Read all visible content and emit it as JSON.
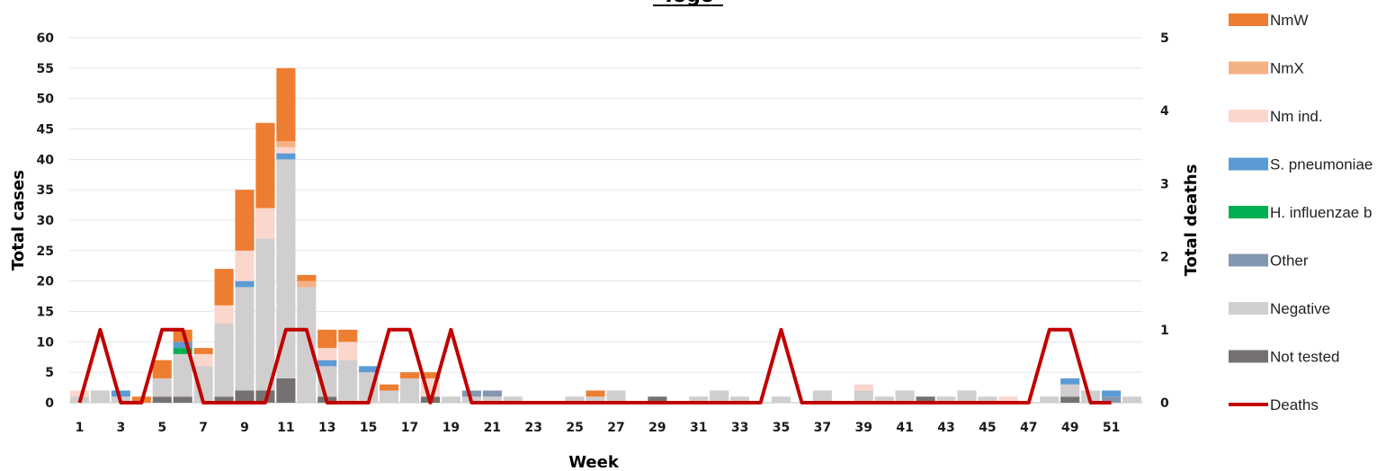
{
  "chart_data": {
    "type": "bar",
    "stacked": true,
    "title": "Togo",
    "xlabel": "Week",
    "ylabel": "Total cases",
    "y2label": "Total deaths",
    "ylim": [
      0,
      60
    ],
    "y2lim": [
      0,
      5
    ],
    "yticks": [
      0,
      5,
      10,
      15,
      20,
      25,
      30,
      35,
      40,
      45,
      50,
      55,
      60
    ],
    "y2ticks": [
      0,
      1,
      2,
      3,
      4,
      5
    ],
    "x_tick_labels": [
      1,
      3,
      5,
      7,
      9,
      11,
      13,
      15,
      17,
      19,
      21,
      23,
      25,
      27,
      29,
      31,
      33,
      35,
      37,
      39,
      41,
      43,
      45,
      47,
      49,
      51
    ],
    "x": [
      1,
      2,
      3,
      4,
      5,
      6,
      7,
      8,
      9,
      10,
      11,
      12,
      13,
      14,
      15,
      16,
      17,
      18,
      19,
      20,
      21,
      22,
      23,
      24,
      25,
      26,
      27,
      28,
      29,
      30,
      31,
      32,
      33,
      34,
      35,
      36,
      37,
      38,
      39,
      40,
      41,
      42,
      43,
      44,
      45,
      46,
      47,
      48,
      49,
      50,
      51,
      52
    ],
    "grid": true,
    "legend_position": "right",
    "series": [
      {
        "name": "Not tested",
        "color": "#767171",
        "values": [
          0,
          0,
          0,
          0,
          1,
          1,
          0,
          1,
          2,
          2,
          4,
          0,
          1,
          0,
          0,
          0,
          0,
          1,
          0,
          0,
          0,
          0,
          0,
          0,
          0,
          0,
          0,
          0,
          1,
          0,
          0,
          0,
          0,
          0,
          0,
          0,
          0,
          0,
          0,
          0,
          0,
          1,
          0,
          0,
          0,
          0,
          0,
          0,
          1,
          0,
          0,
          0
        ]
      },
      {
        "name": "Negative",
        "color": "#d0cece",
        "values": [
          1,
          2,
          1,
          0,
          3,
          7,
          6,
          12,
          17,
          25,
          36,
          19,
          5,
          7,
          5,
          2,
          4,
          0,
          1,
          1,
          1,
          1,
          0,
          0,
          1,
          1,
          2,
          0,
          0,
          0,
          1,
          2,
          1,
          0,
          1,
          0,
          2,
          0,
          2,
          1,
          2,
          0,
          1,
          2,
          1,
          0,
          0,
          1,
          2,
          2,
          0,
          1
        ]
      },
      {
        "name": "Other",
        "color": "#8497b0",
        "values": [
          0,
          0,
          0,
          0,
          0,
          0,
          0,
          0,
          0,
          0,
          0,
          0,
          0,
          0,
          0,
          0,
          0,
          0,
          0,
          1,
          1,
          0,
          0,
          0,
          0,
          0,
          0,
          0,
          0,
          0,
          0,
          0,
          0,
          0,
          0,
          0,
          0,
          0,
          0,
          0,
          0,
          0,
          0,
          0,
          0,
          0,
          0,
          0,
          0,
          0,
          1,
          0
        ]
      },
      {
        "name": "H. influenzae b",
        "color": "#00b050",
        "values": [
          0,
          0,
          0,
          0,
          0,
          1,
          0,
          0,
          0,
          0,
          0,
          0,
          0,
          0,
          0,
          0,
          0,
          0,
          0,
          0,
          0,
          0,
          0,
          0,
          0,
          0,
          0,
          0,
          0,
          0,
          0,
          0,
          0,
          0,
          0,
          0,
          0,
          0,
          0,
          0,
          0,
          0,
          0,
          0,
          0,
          0,
          0,
          0,
          0,
          0,
          0,
          0
        ]
      },
      {
        "name": "S. pneumoniae",
        "color": "#5b9bd5",
        "values": [
          0,
          0,
          1,
          0,
          0,
          1,
          0,
          0,
          1,
          0,
          1,
          0,
          1,
          0,
          1,
          0,
          0,
          0,
          0,
          0,
          0,
          0,
          0,
          0,
          0,
          0,
          0,
          0,
          0,
          0,
          0,
          0,
          0,
          0,
          0,
          0,
          0,
          0,
          0,
          0,
          0,
          0,
          0,
          0,
          0,
          0,
          0,
          0,
          1,
          0,
          1,
          0
        ]
      },
      {
        "name": "Nm ind.",
        "color": "#fbd6cc",
        "values": [
          1,
          0,
          0,
          0,
          0,
          0,
          2,
          3,
          5,
          5,
          1,
          0,
          2,
          3,
          0,
          0,
          0,
          3,
          0,
          0,
          0,
          0,
          0,
          0,
          0,
          0,
          0,
          0,
          0,
          0,
          0,
          0,
          0,
          0,
          0,
          0,
          0,
          0,
          1,
          0,
          0,
          0,
          0,
          0,
          0,
          1,
          0,
          0,
          0,
          0,
          0,
          0
        ]
      },
      {
        "name": "NmX",
        "color": "#f4b183",
        "values": [
          0,
          0,
          0,
          0,
          0,
          0,
          0,
          0,
          0,
          0,
          1,
          1,
          0,
          0,
          0,
          0,
          0,
          0,
          0,
          0,
          0,
          0,
          0,
          0,
          0,
          0,
          0,
          0,
          0,
          0,
          0,
          0,
          0,
          0,
          0,
          0,
          0,
          0,
          0,
          0,
          0,
          0,
          0,
          0,
          0,
          0,
          0,
          0,
          0,
          0,
          0,
          0
        ]
      },
      {
        "name": "NmW",
        "color": "#ed7d31",
        "values": [
          0,
          0,
          0,
          1,
          3,
          2,
          1,
          6,
          10,
          14,
          12,
          1,
          3,
          2,
          0,
          1,
          1,
          1,
          0,
          0,
          0,
          0,
          0,
          0,
          0,
          1,
          0,
          0,
          0,
          0,
          0,
          0,
          0,
          0,
          0,
          0,
          0,
          0,
          0,
          0,
          0,
          0,
          0,
          0,
          0,
          0,
          0,
          0,
          0,
          0,
          0,
          0
        ]
      }
    ],
    "line_series": {
      "name": "Deaths",
      "color": "#c00000",
      "axis": "right",
      "values": [
        0,
        1,
        0,
        0,
        1,
        1,
        0,
        0,
        0,
        0,
        1,
        1,
        0,
        0,
        0,
        1,
        1,
        0,
        1,
        0,
        0,
        0,
        0,
        0,
        0,
        0,
        0,
        0,
        0,
        0,
        0,
        0,
        0,
        0,
        1,
        0,
        0,
        0,
        0,
        0,
        0,
        0,
        0,
        0,
        0,
        0,
        0,
        1,
        1,
        0,
        0,
        null
      ]
    },
    "legend_order": [
      "NmW",
      "NmX",
      "Nm ind.",
      "S. pneumoniae",
      "H. influenzae b",
      "Other",
      "Negative",
      "Not tested",
      "Deaths"
    ]
  }
}
